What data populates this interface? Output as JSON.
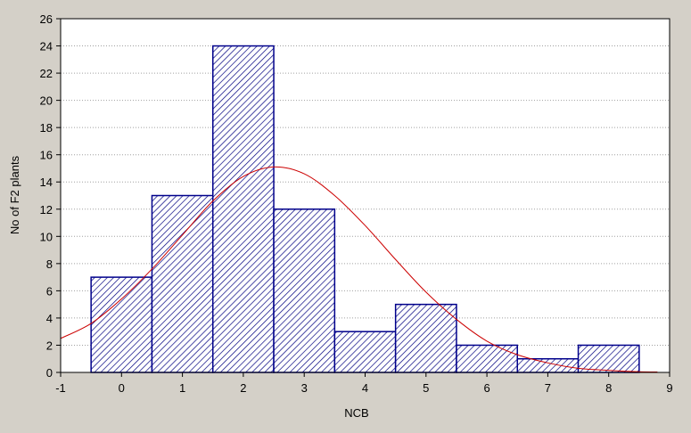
{
  "chart_data": {
    "type": "bar",
    "subtype": "histogram",
    "xlabel": "NCB",
    "ylabel": "No of F2 plants",
    "xlim": [
      -1,
      9
    ],
    "ylim": [
      0,
      26
    ],
    "x_ticks": [
      -1,
      0,
      1,
      2,
      3,
      4,
      5,
      6,
      7,
      8,
      9
    ],
    "y_ticks": [
      0,
      2,
      4,
      6,
      8,
      10,
      12,
      14,
      16,
      18,
      20,
      22,
      24,
      26
    ],
    "grid": true,
    "legend": "none",
    "categories": [
      0,
      1,
      2,
      3,
      4,
      5,
      6,
      7,
      8
    ],
    "values": [
      7,
      13,
      24,
      12,
      3,
      5,
      2,
      1,
      2
    ],
    "bin_width": 1,
    "bar_fill": "hatched",
    "fitted_curve": {
      "type": "normal",
      "color": "#cc0000",
      "x": [
        -1,
        -0.5,
        0,
        0.5,
        1,
        1.5,
        2,
        2.5,
        3,
        3.5,
        4,
        4.5,
        5,
        5.5,
        6,
        6.5,
        7,
        7.5,
        8,
        8.5,
        8.8
      ],
      "y": [
        2.5,
        3.6,
        5.4,
        7.6,
        10.1,
        12.6,
        14.4,
        15.1,
        14.6,
        13.0,
        10.8,
        8.3,
        5.9,
        3.9,
        2.3,
        1.3,
        0.7,
        0.3,
        0.15,
        0.05,
        0.03
      ]
    },
    "colors": {
      "bar_edge": "#00008b",
      "hatch": "#000080",
      "bar_bg": "#ffffff",
      "plot_bg": "#ffffff",
      "frame_bg": "#d4d0c8",
      "grid": "#a0a0a0"
    }
  }
}
